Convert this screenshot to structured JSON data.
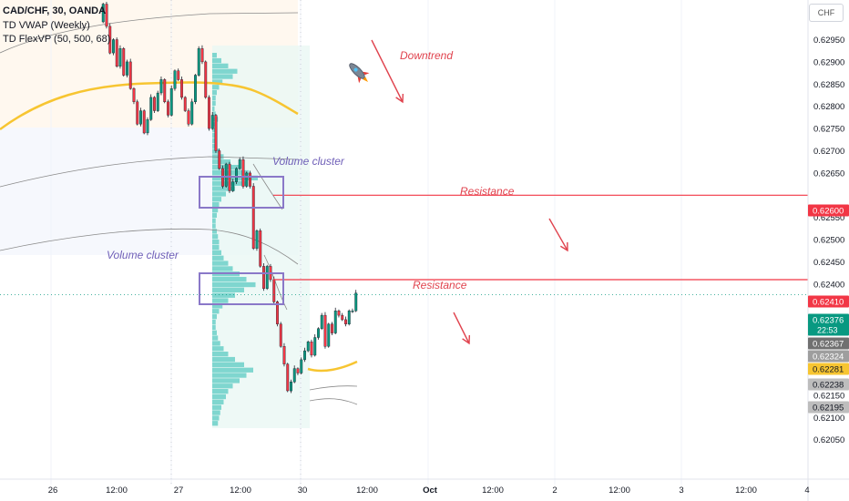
{
  "header": {
    "symbol": "CAD/CHF, 30, OANDA",
    "indicator1": "TD VWAP (Weekly)",
    "indicator2": "TD FlexVP (50, 500, 68)",
    "currency": "CHF"
  },
  "annotations": {
    "downtrend": "Downtrend",
    "resistance_upper": "Resistance",
    "resistance_lower": "Resistance",
    "volume_cluster_upper": "Volume cluster",
    "volume_cluster_lower": "Volume cluster"
  },
  "colors": {
    "up": "#089981",
    "down": "#f23645",
    "vwap": "#f7c531",
    "resistance": "#f23645",
    "volume_profile": "#7fd6cf",
    "cluster_box": "#8a78c8",
    "annotation": "#e0434e",
    "cluster_text": "#6f5fb8"
  },
  "chart_data": {
    "type": "candlestick",
    "title": "CAD/CHF, 30, OANDA",
    "xlabel": "",
    "ylabel": "",
    "ylim": [
      0.62047,
      0.62995
    ],
    "y_ticks": [
      "0.62950",
      "0.62900",
      "0.62850",
      "0.62800",
      "0.62750",
      "0.62700",
      "0.62650",
      "0.62550",
      "0.62500",
      "0.62450",
      "0.62400",
      "0.62150",
      "0.62100",
      "0.62050"
    ],
    "x_ticks": [
      "26",
      "12:00",
      "27",
      "12:00",
      "30",
      "12:00",
      "Oct",
      "12:00",
      "2",
      "12:00",
      "3",
      "12:00",
      "4"
    ],
    "price_labels": [
      {
        "label": "0.62600",
        "value": 0.626,
        "color": "#f23645"
      },
      {
        "label": "0.62410",
        "value": 0.6241,
        "color": "#f23645"
      },
      {
        "label": "0.62376",
        "sub": "22:53",
        "value": 0.62376,
        "color": "#089981"
      },
      {
        "label": "0.62367",
        "value": 0.62367,
        "color": "#707070"
      },
      {
        "label": "0.62324",
        "value": 0.62324,
        "color": "#9e9e9e"
      },
      {
        "label": "0.62281",
        "value": 0.62281,
        "color": "#f7c531"
      },
      {
        "label": "0.62238",
        "value": 0.62238,
        "color": "#bdbdbd"
      },
      {
        "label": "0.62195",
        "value": 0.62195,
        "color": "#bdbdbd"
      }
    ],
    "resistance_levels": [
      0.626,
      0.6241
    ],
    "last_price": 0.62376,
    "candle_close_series": [
      0.6303,
      0.6298,
      0.6292,
      0.6295,
      0.6289,
      0.6293,
      0.6287,
      0.629,
      0.6284,
      0.6281,
      0.6276,
      0.6279,
      0.6274,
      0.6277,
      0.6282,
      0.6279,
      0.6283,
      0.6286,
      0.6281,
      0.6278,
      0.6284,
      0.6288,
      0.6286,
      0.6282,
      0.6279,
      0.6276,
      0.6281,
      0.6287,
      0.6293,
      0.629,
      0.6282,
      0.6275,
      0.6278,
      0.627,
      0.6266,
      0.6262,
      0.6267,
      0.6261,
      0.6263,
      0.6266,
      0.6268,
      0.6262,
      0.6265,
      0.6262,
      0.6248,
      0.6252,
      0.6244,
      0.6239,
      0.6244,
      0.6241,
      0.6236,
      0.6231,
      0.6226,
      0.6222,
      0.6216,
      0.6218,
      0.6221,
      0.622,
      0.6223,
      0.6225,
      0.6227,
      0.6224,
      0.6228,
      0.623,
      0.6233,
      0.6226,
      0.6231,
      0.6229,
      0.6234,
      0.6233,
      0.6232,
      0.6231,
      0.6234,
      0.6234,
      0.6238
    ]
  }
}
